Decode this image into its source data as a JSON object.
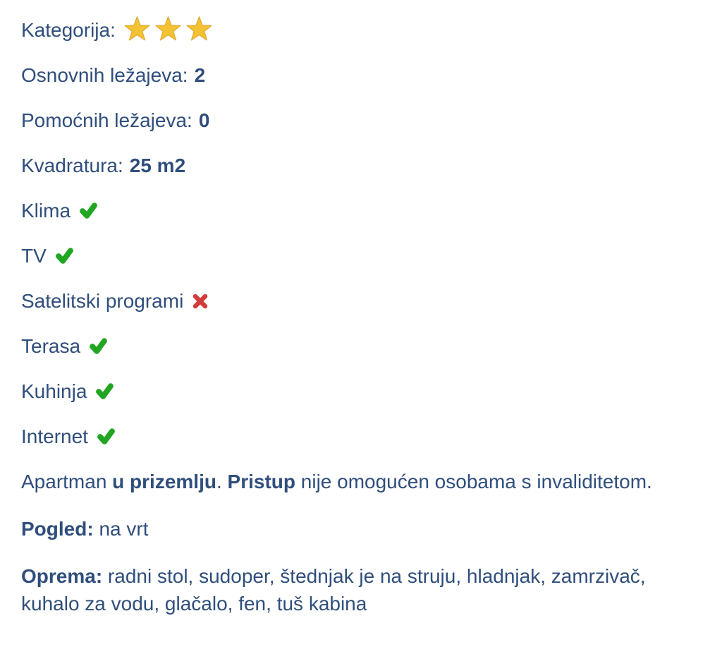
{
  "page": {
    "background": "#ffffff",
    "text_color": "#2f4e7c"
  },
  "colors": {
    "star_fill": "#f2c233",
    "star_edge": "#dfa72c",
    "check_green": "#22a622",
    "cross_red": "#d23c3c"
  },
  "category": {
    "label": "Kategorija:",
    "stars": 3
  },
  "spec_rows": [
    {
      "label": "Osnovnih ležajeva:",
      "value": "2"
    },
    {
      "label": "Pomoćnih ležajeva:",
      "value": "0"
    },
    {
      "label": "Kvadratura:",
      "value": "25 m2"
    }
  ],
  "feature_rows": [
    {
      "label": "Klima",
      "available": true
    },
    {
      "label": "TV",
      "available": true
    },
    {
      "label": "Satelitski programi",
      "available": false
    },
    {
      "label": "Terasa",
      "available": true
    },
    {
      "label": "Kuhinja",
      "available": true
    },
    {
      "label": "Internet",
      "available": true
    }
  ],
  "paragraphs": [
    {
      "name": "accessibility",
      "segments": [
        {
          "text": "Apartman ",
          "bold": false
        },
        {
          "text": "u prizemlju",
          "bold": true
        },
        {
          "text": ". ",
          "bold": false
        },
        {
          "text": "Pristup",
          "bold": true
        },
        {
          "text": " nije omogućen osobama s invaliditetom.",
          "bold": false
        }
      ]
    },
    {
      "name": "view",
      "segments": [
        {
          "text": "Pogled:",
          "bold": true
        },
        {
          "text": " na vrt",
          "bold": false
        }
      ]
    },
    {
      "name": "equipment",
      "segments": [
        {
          "text": "Oprema:",
          "bold": true
        },
        {
          "text": " radni stol, sudoper, štednjak je na struju, hladnjak, zamrzivač, kuhalo za vodu, glačalo, fen, tuš kabina",
          "bold": false
        }
      ]
    }
  ]
}
